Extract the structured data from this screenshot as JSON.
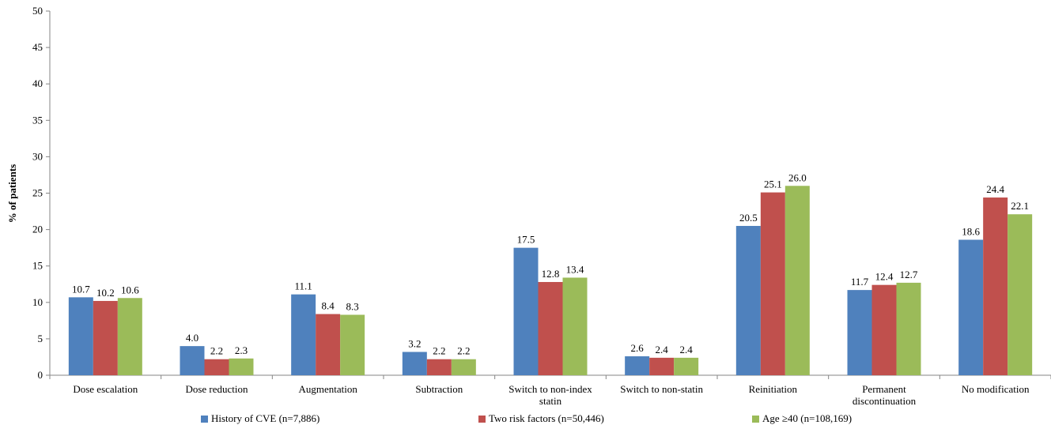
{
  "chart_data": {
    "type": "bar",
    "title": "",
    "xlabel": "",
    "ylabel": "% of patients",
    "ylim": [
      0,
      50
    ],
    "yticks": [
      0,
      5,
      10,
      15,
      20,
      25,
      30,
      35,
      40,
      45,
      50
    ],
    "grid": false,
    "legend_position": "bottom",
    "categories": [
      [
        "Dose escalation"
      ],
      [
        "Dose reduction"
      ],
      [
        "Augmentation"
      ],
      [
        "Subtraction"
      ],
      [
        "Switch to non-index",
        "statin"
      ],
      [
        "Switch to non-statin"
      ],
      [
        "Reinitiation"
      ],
      [
        "Permanent",
        "discontinuation"
      ],
      [
        "No modification"
      ]
    ],
    "series": [
      {
        "name": "History of CVE (n=7,886)",
        "color": "#4f81bd",
        "values": [
          10.7,
          4.0,
          11.1,
          3.2,
          17.5,
          2.6,
          20.5,
          11.7,
          18.6
        ]
      },
      {
        "name": "Two risk factors (n=50,446)",
        "color": "#c0504d",
        "values": [
          10.2,
          2.2,
          8.4,
          2.2,
          12.8,
          2.4,
          25.1,
          12.4,
          24.4
        ]
      },
      {
        "name": "Age ≥40 (n=108,169)",
        "color": "#9bbb59",
        "values": [
          10.6,
          2.3,
          8.3,
          2.2,
          13.4,
          2.4,
          26.0,
          12.7,
          22.1
        ]
      }
    ]
  }
}
